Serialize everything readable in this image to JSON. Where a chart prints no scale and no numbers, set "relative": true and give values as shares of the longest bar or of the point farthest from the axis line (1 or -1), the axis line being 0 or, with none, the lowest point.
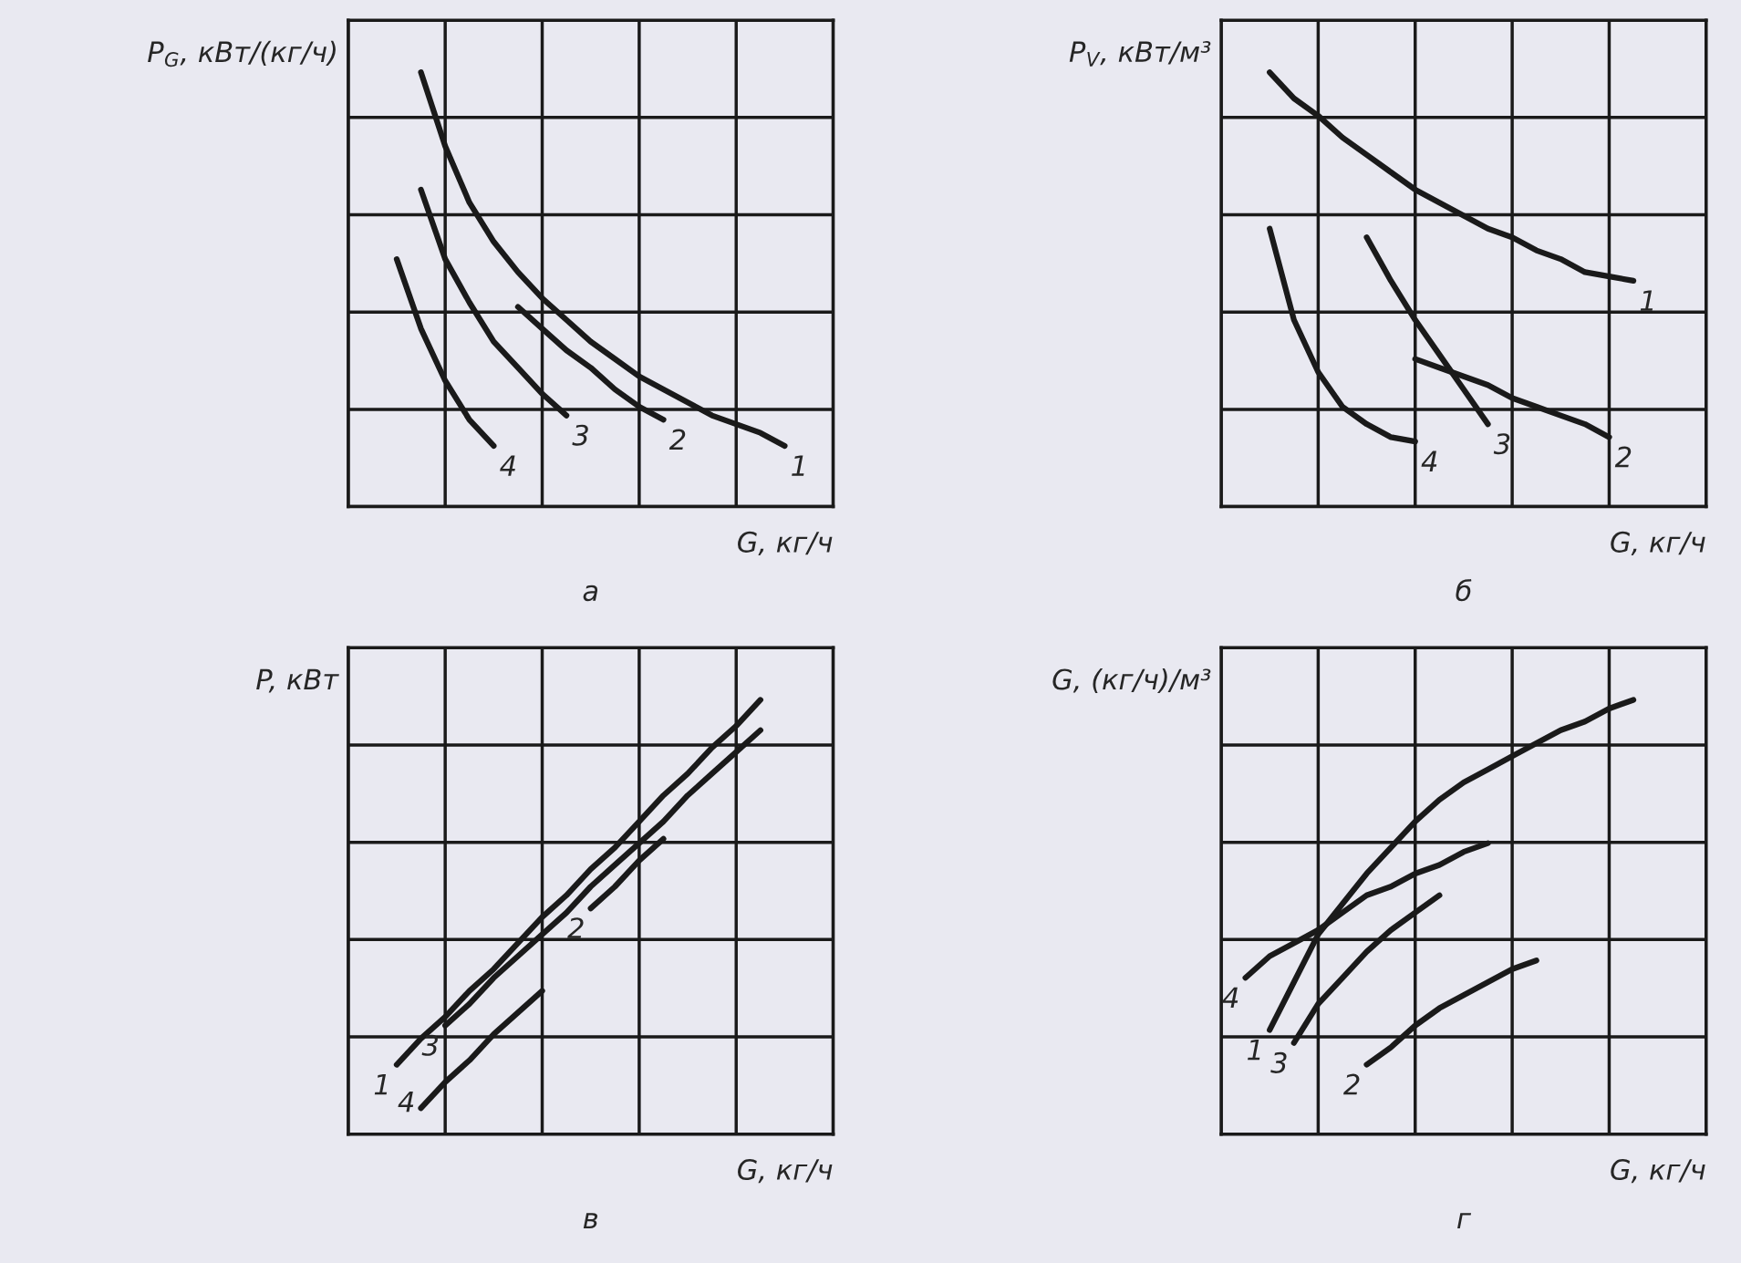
{
  "chart_data": [
    {
      "type": "line",
      "relative": true,
      "grid": true,
      "tick_labels": false,
      "legend": false,
      "marker": "none",
      "line_style": "solid",
      "title": "а",
      "xlabel": "G, кг/ч",
      "ylabel": "P$_{G}$, кВт/(кг/ч)",
      "categories": [
        null,
        null,
        null,
        null,
        null,
        null,
        null,
        null,
        null,
        null,
        null,
        null,
        null,
        null,
        null,
        null,
        null,
        null,
        null,
        null,
        null
      ],
      "series": [
        {
          "name": "1",
          "color": "#1a1a1a",
          "values": [
            null,
            null,
            null,
            1.0,
            0.83,
            0.7,
            0.61,
            0.54,
            0.48,
            0.43,
            0.38,
            0.34,
            0.3,
            0.27,
            0.24,
            0.21,
            0.19,
            0.17,
            0.14,
            null,
            null
          ]
        },
        {
          "name": "2",
          "color": "#1a1a1a",
          "values": [
            null,
            null,
            null,
            null,
            null,
            null,
            null,
            0.46,
            0.41,
            0.36,
            0.32,
            0.27,
            0.23,
            0.2,
            null,
            null,
            null,
            null,
            null,
            null,
            null
          ]
        },
        {
          "name": "3",
          "color": "#1a1a1a",
          "values": [
            null,
            null,
            null,
            0.73,
            0.57,
            0.47,
            0.38,
            0.32,
            0.26,
            0.21,
            null,
            null,
            null,
            null,
            null,
            null,
            null,
            null,
            null,
            null,
            null
          ]
        },
        {
          "name": "4",
          "color": "#1a1a1a",
          "values": [
            null,
            null,
            0.57,
            0.41,
            0.29,
            0.2,
            0.14,
            null,
            null,
            null,
            null,
            null,
            null,
            null,
            null,
            null,
            null,
            null,
            null,
            null,
            null
          ]
        }
      ]
    },
    {
      "type": "line",
      "relative": true,
      "grid": true,
      "tick_labels": false,
      "legend": false,
      "marker": "none",
      "line_style": "solid",
      "title": "б",
      "xlabel": "G, кг/ч",
      "ylabel": "P$_{V}$, кВт/м³",
      "categories": [
        null,
        null,
        null,
        null,
        null,
        null,
        null,
        null,
        null,
        null,
        null,
        null,
        null,
        null,
        null,
        null,
        null,
        null,
        null,
        null,
        null
      ],
      "series": [
        {
          "name": "1",
          "color": "#1a1a1a",
          "values": [
            null,
            null,
            1.0,
            0.94,
            0.9,
            0.85,
            0.81,
            0.77,
            0.73,
            0.7,
            0.67,
            0.64,
            0.62,
            0.59,
            0.57,
            0.54,
            0.53,
            0.52,
            null,
            null,
            null
          ]
        },
        {
          "name": "2",
          "color": "#1a1a1a",
          "values": [
            null,
            null,
            null,
            null,
            null,
            null,
            null,
            null,
            0.34,
            0.32,
            0.3,
            0.28,
            0.25,
            0.23,
            0.21,
            0.19,
            0.16,
            null,
            null,
            null,
            null
          ]
        },
        {
          "name": "3",
          "color": "#1a1a1a",
          "values": [
            null,
            null,
            null,
            null,
            null,
            null,
            0.62,
            0.52,
            0.43,
            0.35,
            0.27,
            0.19,
            null,
            null,
            null,
            null,
            null,
            null,
            null,
            null,
            null
          ]
        },
        {
          "name": "4",
          "color": "#1a1a1a",
          "values": [
            null,
            null,
            0.64,
            0.43,
            0.31,
            0.23,
            0.19,
            0.16,
            0.15,
            null,
            null,
            null,
            null,
            null,
            null,
            null,
            null,
            null,
            null,
            null,
            null
          ]
        }
      ]
    },
    {
      "type": "line",
      "relative": true,
      "grid": true,
      "tick_labels": false,
      "legend": false,
      "marker": "none",
      "line_style": "solid",
      "title": "в",
      "xlabel": "G, кг/ч",
      "ylabel": "P, кВт",
      "categories": [
        null,
        null,
        null,
        null,
        null,
        null,
        null,
        null,
        null,
        null,
        null,
        null,
        null,
        null,
        null,
        null,
        null,
        null,
        null,
        null,
        null
      ],
      "series": [
        {
          "name": "1",
          "color": "#1a1a1a",
          "values": [
            null,
            null,
            0.16,
            0.22,
            0.27,
            0.33,
            0.38,
            0.44,
            0.5,
            0.55,
            0.61,
            0.66,
            0.72,
            0.78,
            0.83,
            0.89,
            0.94,
            1.0,
            null,
            null,
            null
          ]
        },
        {
          "name": "2",
          "color": "#1a1a1a",
          "values": [
            null,
            null,
            null,
            null,
            null,
            null,
            null,
            null,
            null,
            null,
            0.52,
            0.57,
            0.63,
            0.68,
            null,
            null,
            null,
            null,
            null,
            null,
            null
          ]
        },
        {
          "name": "3",
          "color": "#1a1a1a",
          "values": [
            null,
            null,
            null,
            null,
            0.25,
            0.3,
            0.36,
            0.41,
            0.46,
            0.51,
            0.57,
            0.62,
            0.67,
            0.72,
            0.78,
            0.83,
            0.88,
            0.93,
            null,
            null,
            null
          ]
        },
        {
          "name": "4",
          "color": "#1a1a1a",
          "values": [
            null,
            null,
            null,
            0.06,
            0.12,
            0.17,
            0.23,
            0.28,
            0.33,
            null,
            null,
            null,
            null,
            null,
            null,
            null,
            null,
            null,
            null,
            null,
            null
          ]
        }
      ]
    },
    {
      "type": "line",
      "relative": true,
      "grid": true,
      "tick_labels": false,
      "legend": false,
      "marker": "none",
      "line_style": "solid",
      "title": "г",
      "xlabel": "G, кг/ч",
      "ylabel": "G, (кг/ч)/м³",
      "categories": [
        null,
        null,
        null,
        null,
        null,
        null,
        null,
        null,
        null,
        null,
        null,
        null,
        null,
        null,
        null,
        null,
        null,
        null,
        null,
        null,
        null
      ],
      "series": [
        {
          "name": "1",
          "color": "#1a1a1a",
          "values": [
            null,
            null,
            0.24,
            0.35,
            0.46,
            0.53,
            0.6,
            0.66,
            0.72,
            0.77,
            0.81,
            0.84,
            0.87,
            0.9,
            0.93,
            0.95,
            0.98,
            1.0,
            null,
            null,
            null
          ]
        },
        {
          "name": "2",
          "color": "#1a1a1a",
          "values": [
            null,
            null,
            null,
            null,
            null,
            null,
            0.16,
            0.2,
            0.25,
            0.29,
            0.32,
            0.35,
            0.38,
            0.4,
            null,
            null,
            null,
            null,
            null,
            null,
            null
          ]
        },
        {
          "name": "3",
          "color": "#1a1a1a",
          "values": [
            null,
            null,
            null,
            0.21,
            0.3,
            0.36,
            0.42,
            0.47,
            0.51,
            0.55,
            null,
            null,
            null,
            null,
            null,
            null,
            null,
            null,
            null,
            null,
            null
          ]
        },
        {
          "name": "4",
          "color": "#1a1a1a",
          "values": [
            null,
            0.36,
            0.41,
            0.44,
            0.47,
            0.51,
            0.55,
            0.57,
            0.6,
            0.62,
            0.65,
            0.67,
            null,
            null,
            null,
            null,
            null,
            null,
            null,
            null,
            null
          ]
        }
      ]
    }
  ]
}
